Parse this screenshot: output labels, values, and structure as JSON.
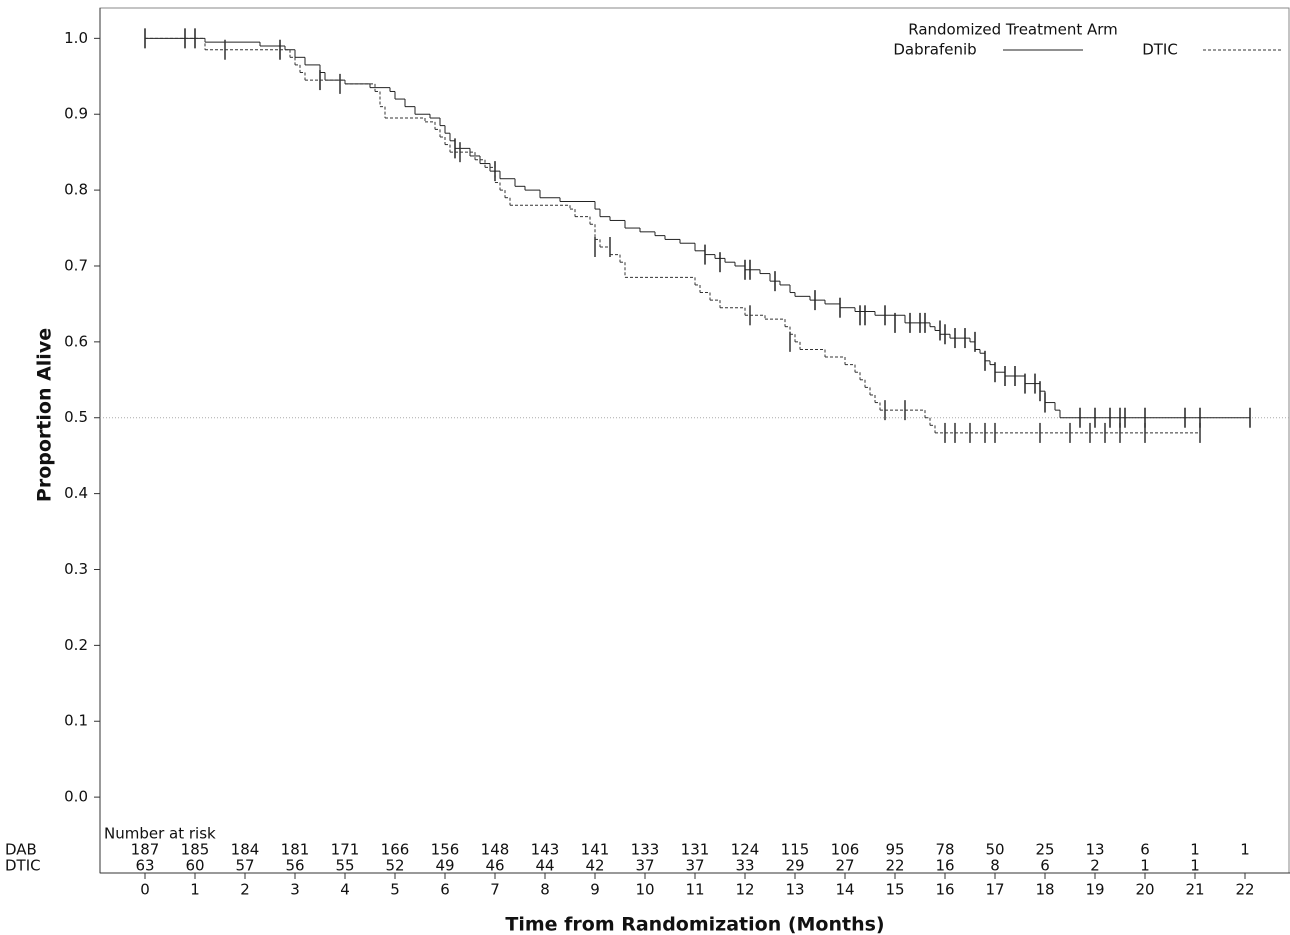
{
  "chart_data": {
    "type": "km",
    "x_label": "Time from Randomization (Months)",
    "y_label": "Proportion Alive",
    "xlim": [
      -0.9,
      22.9
    ],
    "ylim": [
      -0.1,
      1.04
    ],
    "xticks": [
      0,
      1,
      2,
      3,
      4,
      5,
      6,
      7,
      8,
      9,
      10,
      11,
      12,
      13,
      14,
      15,
      16,
      17,
      18,
      19,
      20,
      21,
      22
    ],
    "yticks": [
      {
        "value": 0,
        "label": "0.0"
      },
      {
        "value": 0.1,
        "label": "0.1"
      },
      {
        "value": 0.2,
        "label": "0.2"
      },
      {
        "value": 0.3,
        "label": "0.3"
      },
      {
        "value": 0.4,
        "label": "0.4"
      },
      {
        "value": 0.5,
        "label": "0.5"
      },
      {
        "value": 0.6,
        "label": "0.6"
      },
      {
        "value": 0.7,
        "label": "0.7"
      },
      {
        "value": 0.8,
        "label": "0.8"
      },
      {
        "value": 0.9,
        "label": "0.9"
      },
      {
        "value": 1,
        "label": "1.0"
      }
    ],
    "reference_y": 0.5,
    "legend_title": "Randomized Treatment Arm",
    "series": [
      {
        "name": "Dabrafenib",
        "color": "#222222",
        "dashed": false,
        "x": [
          0,
          1.2,
          2.3,
          2.8,
          3.0,
          3.2,
          3.5,
          3.6,
          4.0,
          4.5,
          4.9,
          5.0,
          5.2,
          5.4,
          5.7,
          5.9,
          6.0,
          6.1,
          6.2,
          6.5,
          6.7,
          6.9,
          7.1,
          7.4,
          7.6,
          7.9,
          8.3,
          9.0,
          9.1,
          9.3,
          9.6,
          9.9,
          10.2,
          10.4,
          10.7,
          11.0,
          11.2,
          11.4,
          11.6,
          11.8,
          12.0,
          12.3,
          12.5,
          12.7,
          12.9,
          13.0,
          13.3,
          13.6,
          13.9,
          14.2,
          14.6,
          15.2,
          15.7,
          15.8,
          15.9,
          16.1,
          16.5,
          16.6,
          16.7,
          16.8,
          16.9,
          17.0,
          17.2,
          17.6,
          17.9,
          18.0,
          18.2,
          18.3,
          22.1
        ],
        "y": [
          1.0,
          0.995,
          0.99,
          0.985,
          0.975,
          0.965,
          0.955,
          0.945,
          0.94,
          0.935,
          0.93,
          0.92,
          0.91,
          0.9,
          0.895,
          0.885,
          0.875,
          0.865,
          0.855,
          0.845,
          0.835,
          0.825,
          0.815,
          0.805,
          0.8,
          0.79,
          0.785,
          0.775,
          0.765,
          0.76,
          0.75,
          0.745,
          0.74,
          0.735,
          0.73,
          0.72,
          0.715,
          0.71,
          0.705,
          0.7,
          0.695,
          0.69,
          0.68,
          0.675,
          0.665,
          0.66,
          0.655,
          0.65,
          0.645,
          0.64,
          0.635,
          0.625,
          0.62,
          0.615,
          0.61,
          0.605,
          0.6,
          0.59,
          0.585,
          0.575,
          0.57,
          0.56,
          0.555,
          0.545,
          0.535,
          0.52,
          0.51,
          0.5,
          0.5
        ],
        "censor_x": [
          0,
          0.8,
          1.0,
          2.7,
          3.5,
          6.2,
          7.0,
          11.2,
          11.5,
          12.0,
          12.1,
          12.6,
          13.4,
          13.9,
          14.3,
          14.4,
          14.8,
          15.0,
          15.3,
          15.5,
          15.6,
          15.9,
          16.0,
          16.2,
          16.4,
          16.6,
          16.8,
          17.0,
          17.2,
          17.4,
          17.6,
          17.8,
          17.9,
          18.0,
          18.7,
          19.0,
          19.3,
          19.5,
          19.6,
          20.0,
          20.8,
          21.1,
          22.1
        ],
        "censor_y": [
          1.0,
          1.0,
          1.0,
          0.985,
          0.945,
          0.855,
          0.825,
          0.715,
          0.705,
          0.695,
          0.695,
          0.68,
          0.655,
          0.645,
          0.635,
          0.635,
          0.635,
          0.625,
          0.625,
          0.625,
          0.625,
          0.615,
          0.61,
          0.605,
          0.605,
          0.6,
          0.575,
          0.56,
          0.555,
          0.555,
          0.545,
          0.545,
          0.535,
          0.52,
          0.5,
          0.5,
          0.5,
          0.5,
          0.5,
          0.5,
          0.5,
          0.5,
          0.5
        ]
      },
      {
        "name": "DTIC",
        "color": "#333333",
        "dashed": true,
        "x": [
          0,
          1.2,
          2.9,
          3.0,
          3.1,
          3.2,
          4.0,
          4.6,
          4.7,
          4.8,
          5.6,
          5.8,
          5.9,
          6.0,
          6.1,
          6.6,
          6.8,
          7.0,
          7.1,
          7.2,
          7.3,
          8.5,
          8.6,
          8.9,
          9.0,
          9.1,
          9.3,
          9.5,
          9.6,
          11.0,
          11.1,
          11.3,
          11.5,
          12.0,
          12.4,
          12.8,
          12.9,
          13.0,
          13.1,
          13.6,
          14.0,
          14.2,
          14.3,
          14.4,
          14.5,
          14.6,
          14.7,
          15.6,
          15.7,
          15.8,
          21.1
        ],
        "y": [
          1.0,
          0.985,
          0.975,
          0.965,
          0.955,
          0.945,
          0.94,
          0.93,
          0.91,
          0.895,
          0.89,
          0.88,
          0.87,
          0.86,
          0.85,
          0.84,
          0.83,
          0.81,
          0.8,
          0.79,
          0.78,
          0.775,
          0.765,
          0.755,
          0.735,
          0.725,
          0.715,
          0.705,
          0.685,
          0.675,
          0.665,
          0.655,
          0.645,
          0.635,
          0.63,
          0.62,
          0.61,
          0.6,
          0.59,
          0.58,
          0.57,
          0.56,
          0.55,
          0.54,
          0.53,
          0.52,
          0.51,
          0.5,
          0.49,
          0.48,
          0.48
        ],
        "censor_x": [
          1.6,
          3.9,
          6.3,
          9.0,
          9.3,
          12.1,
          12.9,
          14.8,
          15.2,
          16.0,
          16.2,
          16.5,
          16.8,
          17.0,
          17.9,
          18.5,
          18.9,
          19.2,
          19.5,
          20.0,
          21.1
        ],
        "censor_y": [
          0.985,
          0.94,
          0.85,
          0.725,
          0.725,
          0.635,
          0.6,
          0.51,
          0.51,
          0.48,
          0.48,
          0.48,
          0.48,
          0.48,
          0.48,
          0.48,
          0.48,
          0.48,
          0.48,
          0.48,
          0.48
        ]
      }
    ],
    "risk_table": {
      "title": "Number at risk",
      "rows": [
        {
          "label": "DAB",
          "values": [
            187,
            185,
            184,
            181,
            171,
            166,
            156,
            148,
            143,
            141,
            133,
            131,
            124,
            115,
            106,
            95,
            78,
            50,
            25,
            13,
            6,
            1,
            1
          ]
        },
        {
          "label": "DTIC",
          "values": [
            63,
            60,
            57,
            56,
            55,
            52,
            49,
            46,
            44,
            42,
            37,
            37,
            33,
            29,
            27,
            22,
            16,
            8,
            6,
            2,
            1,
            1,
            null
          ]
        }
      ]
    }
  }
}
